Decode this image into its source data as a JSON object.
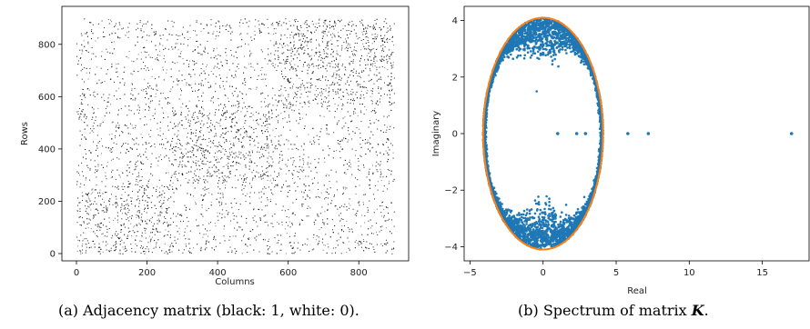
{
  "captions": {
    "left_prefix": "(a) Adjacency matrix (black: 1, white: 0).",
    "right_prefix": "(b) Spectrum of matrix ",
    "right_symbol": "K",
    "right_suffix": "."
  },
  "chart_data": [
    {
      "type": "heatmap",
      "title": "",
      "xlabel": "Columns",
      "ylabel": "Rows",
      "xlim": [
        0,
        900
      ],
      "ylim": [
        0,
        900
      ],
      "xticks": [
        0,
        200,
        400,
        600,
        800
      ],
      "yticks": [
        0,
        200,
        400,
        600,
        800
      ],
      "grid": false,
      "colors": {
        "one": "#000000",
        "zero": "#ffffff"
      },
      "blocks": [
        {
          "rows": [
            0,
            270
          ],
          "cols": [
            0,
            270
          ],
          "density": 0.32
        },
        {
          "rows": [
            270,
            570
          ],
          "cols": [
            270,
            570
          ],
          "density": 0.32
        },
        {
          "rows": [
            570,
            900
          ],
          "cols": [
            570,
            900
          ],
          "density": 0.32
        }
      ],
      "background_density": 0.14
    },
    {
      "type": "scatter",
      "title": "",
      "xlabel": "Real",
      "ylabel": "Imaginary",
      "xlim": [
        -5.4,
        18.2
      ],
      "ylim": [
        -4.5,
        4.5
      ],
      "xticks": [
        -5,
        0,
        5,
        10,
        15
      ],
      "yticks": [
        -4,
        -2,
        0,
        2,
        4
      ],
      "grid": false,
      "colors": {
        "points": "#1f77b4",
        "ellipse": "#ff7f0e"
      },
      "ellipse": {
        "center": [
          0,
          0
        ],
        "a": 4.1,
        "b": 4.1
      },
      "outliers": [
        {
          "x": 1.0,
          "y": 0
        },
        {
          "x": 2.3,
          "y": 0
        },
        {
          "x": 2.9,
          "y": 0
        },
        {
          "x": 5.8,
          "y": 0
        },
        {
          "x": 7.2,
          "y": 0
        },
        {
          "x": 17.0,
          "y": 0
        }
      ],
      "inner_points": [
        {
          "x": 0.0,
          "y": 3.15
        },
        {
          "x": 0.0,
          "y": 2.8
        },
        {
          "x": 0.0,
          "y": -3.15
        },
        {
          "x": 0.0,
          "y": -2.8
        }
      ]
    }
  ]
}
